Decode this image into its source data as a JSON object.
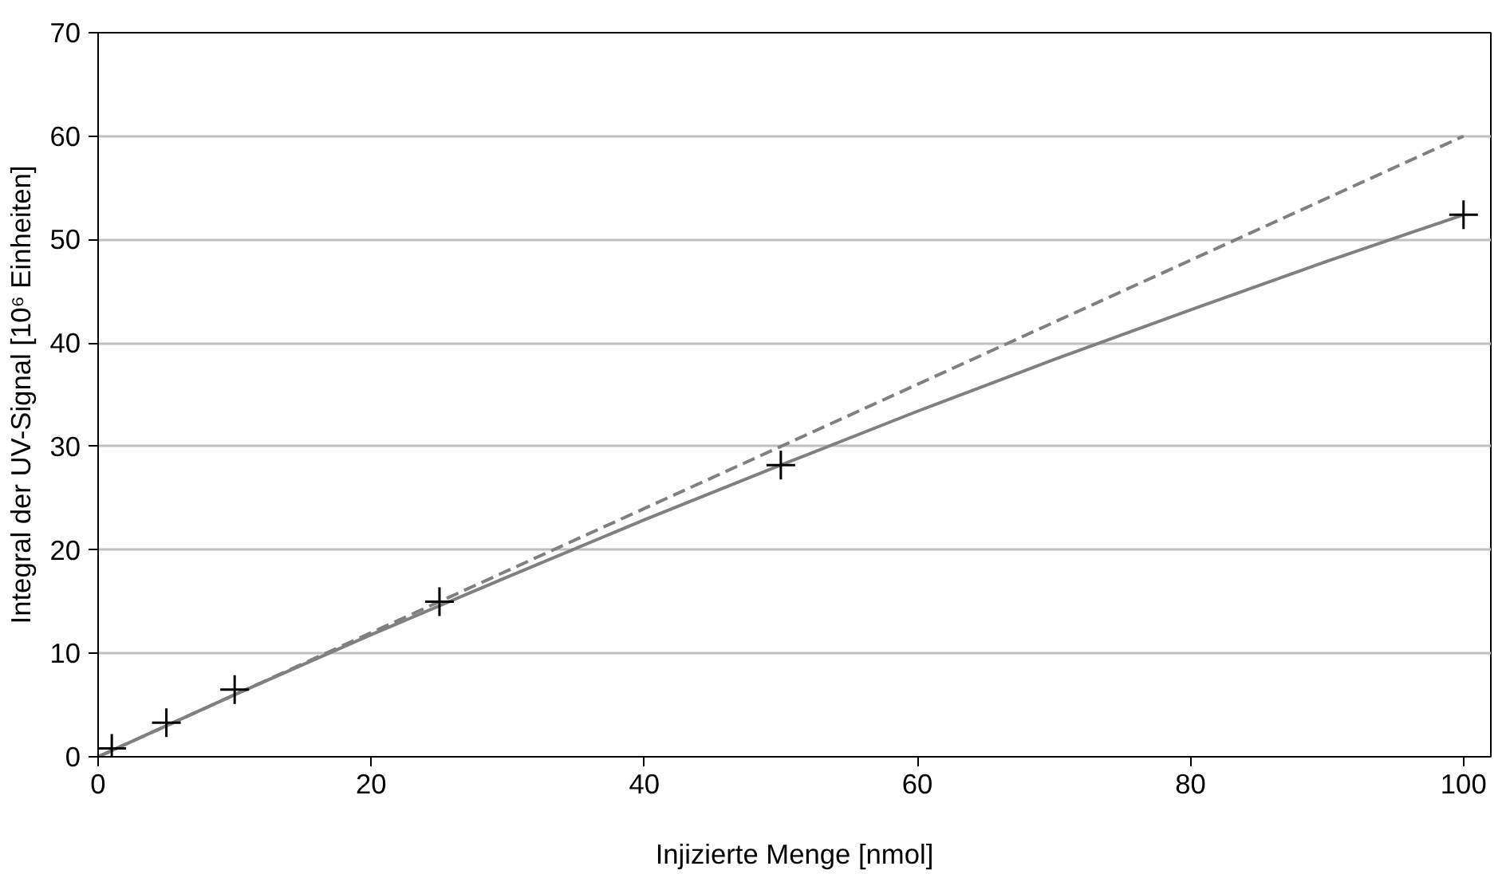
{
  "chart_data": {
    "type": "scatter",
    "xlabel": "Injizierte Menge [nmol]",
    "ylabel": "Integral der UV-Signal [10⁶ Einheiten]",
    "xlim": [
      0,
      102
    ],
    "ylim": [
      0,
      70
    ],
    "xticks": [
      0,
      20,
      40,
      60,
      80,
      100
    ],
    "yticks": [
      0,
      10,
      20,
      30,
      40,
      50,
      60,
      70
    ],
    "grid": "y",
    "series": [
      {
        "type": "line",
        "color": "#808080",
        "line_style": "dashed",
        "marker": "none",
        "x": [
          0,
          100
        ],
        "values": [
          0,
          60
        ]
      },
      {
        "type": "line",
        "color": "#808080",
        "line_style": "solid",
        "marker": "none",
        "x": [
          0,
          10,
          20,
          30,
          40,
          50,
          60,
          70,
          80,
          90,
          100
        ],
        "values": [
          0,
          6.0,
          11.8,
          17.4,
          22.9,
          28.2,
          33.4,
          38.4,
          43.2,
          47.9,
          52.4
        ]
      },
      {
        "color": "#000000",
        "marker": "cross",
        "x": [
          1,
          5,
          10,
          25,
          50,
          100
        ],
        "values": [
          0.8,
          3.3,
          6.5,
          15.0,
          28.2,
          52.4
        ]
      }
    ]
  }
}
